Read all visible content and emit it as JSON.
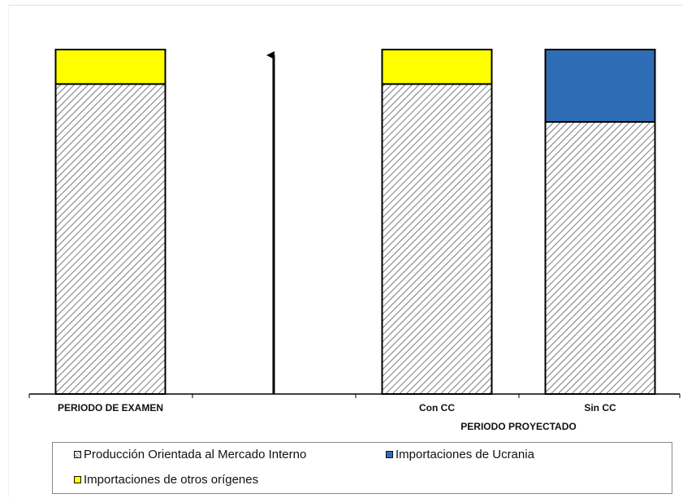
{
  "chart_data": {
    "type": "bar",
    "stacked": true,
    "percent_scale": true,
    "ylim": [
      0,
      100
    ],
    "y_axis_labels": false,
    "grid": false,
    "legend_position": "bottom",
    "categories": [
      "PERIODO DE EXAMEN",
      "",
      "Con CC",
      "Sin CC"
    ],
    "group_label": "PERIODO PROYECTADO",
    "arrow_category": "",
    "series": [
      {
        "name": "Producción Orientada al Mercado Interno",
        "values": [
          90,
          0,
          90,
          79
        ],
        "color": "#ffffff",
        "pattern": "hatch"
      },
      {
        "name": "Importaciones de Ucrania",
        "values": [
          0,
          0,
          0,
          21
        ],
        "color": "#2e6db5"
      },
      {
        "name": "Importaciones de otros orígenes",
        "values": [
          10,
          0,
          10,
          0
        ],
        "color": "#ffff00"
      }
    ]
  },
  "legend": {
    "item1": "Producción Orientada al Mercado Interno",
    "item2": "Importaciones de Ucrania",
    "item3": "Importaciones de otros orígenes"
  },
  "colors": {
    "hatch_line": "#7a7a7a",
    "ucrania": "#2e6db5",
    "otros": "#ffff00"
  }
}
